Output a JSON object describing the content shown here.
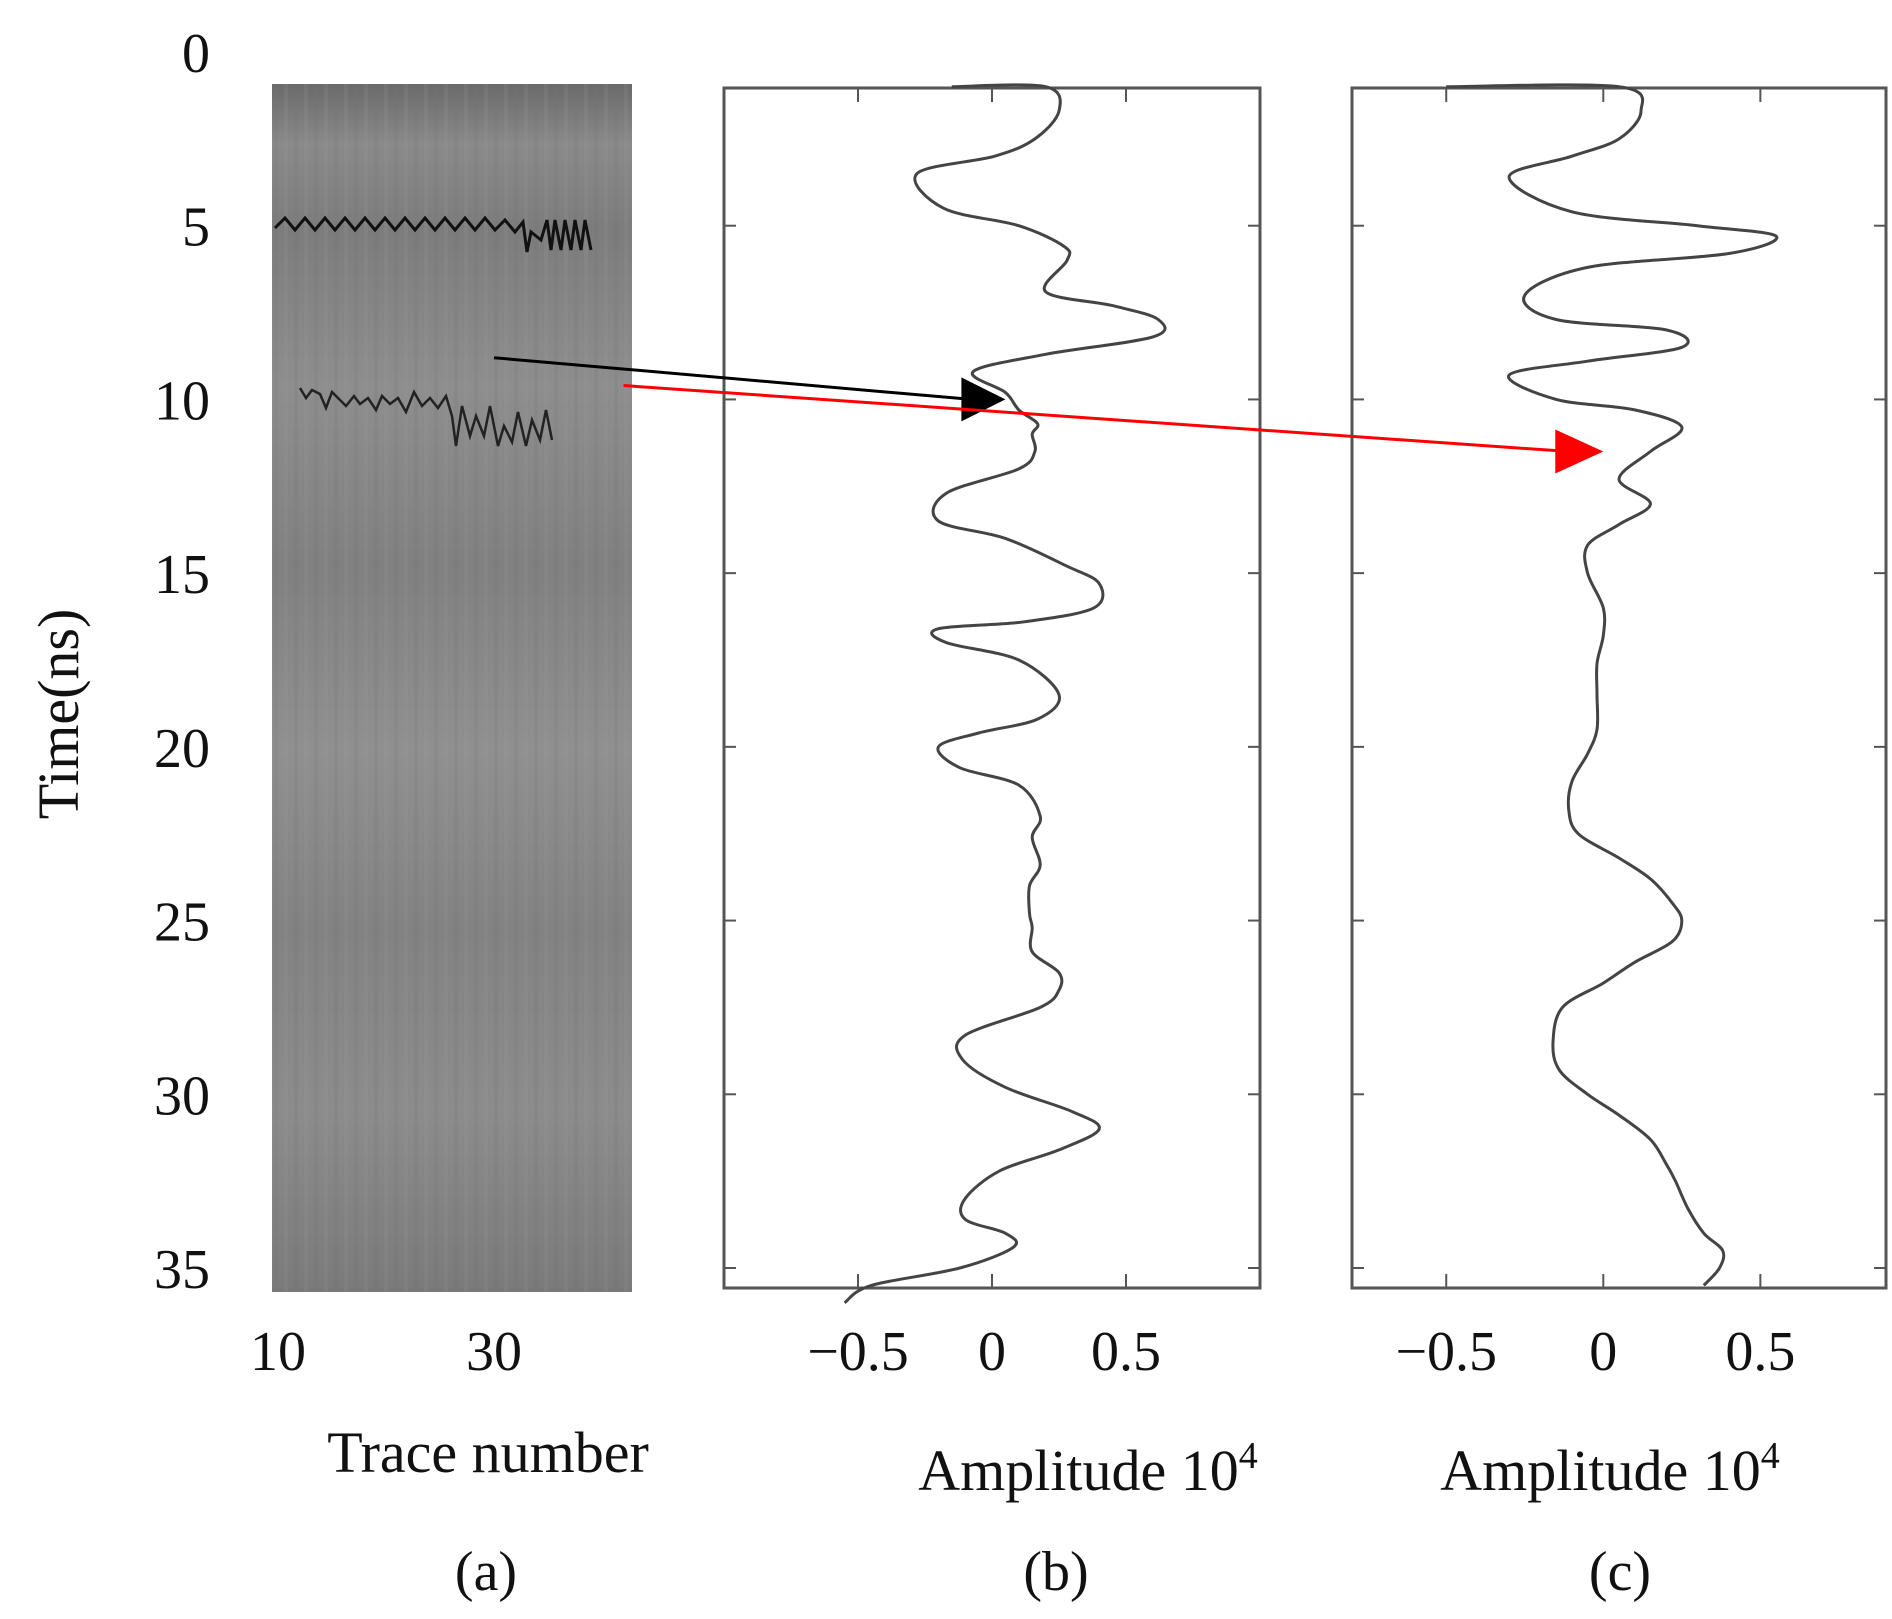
{
  "chart_data": [
    {
      "panel_label": "(a)",
      "type": "heatmap",
      "xlabel": "Trace number",
      "ylabel": "Time(ns)",
      "x_ticks": [
        "10",
        "30"
      ],
      "y_ticks": [
        "0",
        "5",
        "10",
        "15",
        "20",
        "25",
        "30",
        "35"
      ],
      "xlim": [
        10,
        43
      ],
      "ylim": [
        36,
        0
      ],
      "colormap": "gray",
      "annotations": [
        {
          "kind": "arrow",
          "color": "#000000",
          "from": {
            "trace": 30,
            "time": 8.8
          },
          "to_panel": "(b)",
          "to": {
            "amplitude": 0.05,
            "time": 10.0
          }
        },
        {
          "kind": "arrow",
          "color": "#ff0000",
          "from": {
            "trace": 42,
            "time": 9.6
          },
          "to_panel": "(c)",
          "to": {
            "amplitude": 0.0,
            "time": 11.5
          }
        }
      ]
    },
    {
      "panel_label": "(b)",
      "type": "line",
      "xlabel": "Amplitude 10",
      "xlabel_sup": "4",
      "x_ticks": [
        "−0.5",
        "0",
        "0.5"
      ],
      "xlim": [
        -1.0,
        1.0
      ],
      "ylim": [
        36,
        0
      ],
      "line_color": "#444444",
      "series": [
        {
          "values": [
            [
              -0.15,
              1.0
            ],
            [
              0.2,
              1.0
            ],
            [
              0.25,
              1.7
            ],
            [
              0.16,
              2.5
            ],
            [
              0.01,
              3.0
            ],
            [
              -0.28,
              3.5
            ],
            [
              -0.18,
              4.5
            ],
            [
              0.1,
              5.0
            ],
            [
              0.27,
              5.6
            ],
            [
              0.28,
              6.0
            ],
            [
              0.2,
              6.9
            ],
            [
              0.45,
              7.3
            ],
            [
              0.62,
              7.7
            ],
            [
              0.6,
              8.2
            ],
            [
              0.2,
              8.7
            ],
            [
              -0.07,
              9.2
            ],
            [
              0.05,
              9.8
            ],
            [
              0.1,
              10.3
            ],
            [
              0.17,
              10.7
            ],
            [
              0.15,
              11.0
            ],
            [
              0.16,
              11.5
            ],
            [
              0.1,
              12.0
            ],
            [
              -0.17,
              12.7
            ],
            [
              -0.2,
              13.5
            ],
            [
              0.05,
              14.0
            ],
            [
              0.28,
              14.8
            ],
            [
              0.4,
              15.3
            ],
            [
              0.38,
              16.0
            ],
            [
              0.12,
              16.4
            ],
            [
              -0.2,
              16.6
            ],
            [
              -0.17,
              17.0
            ],
            [
              0.1,
              17.5
            ],
            [
              0.25,
              18.5
            ],
            [
              0.17,
              19.2
            ],
            [
              -0.05,
              19.6
            ],
            [
              -0.2,
              20.0
            ],
            [
              -0.12,
              20.6
            ],
            [
              0.1,
              21.1
            ],
            [
              0.18,
              22.0
            ],
            [
              0.15,
              22.6
            ],
            [
              0.18,
              23.4
            ],
            [
              0.14,
              24.0
            ],
            [
              0.14,
              24.8
            ],
            [
              0.15,
              25.2
            ],
            [
              0.15,
              25.9
            ],
            [
              0.25,
              26.5
            ],
            [
              0.25,
              27.0
            ],
            [
              0.18,
              27.5
            ],
            [
              -0.1,
              28.3
            ],
            [
              -0.11,
              29.0
            ],
            [
              0.05,
              29.8
            ],
            [
              0.3,
              30.5
            ],
            [
              0.4,
              31.0
            ],
            [
              0.25,
              31.6
            ],
            [
              0.03,
              32.2
            ],
            [
              -0.1,
              33.0
            ],
            [
              -0.1,
              33.6
            ],
            [
              0.05,
              34.0
            ],
            [
              0.08,
              34.4
            ],
            [
              -0.12,
              35.0
            ],
            [
              -0.45,
              35.5
            ],
            [
              -0.55,
              36.0
            ]
          ]
        }
      ]
    },
    {
      "panel_label": "(c)",
      "type": "line",
      "xlabel": "Amplitude 10",
      "xlabel_sup": "4",
      "x_ticks": [
        "−0.5",
        "0",
        "0.5"
      ],
      "xlim": [
        -0.8,
        0.9
      ],
      "ylim": [
        36,
        0
      ],
      "line_color": "#444444",
      "series": [
        {
          "values": [
            [
              -0.5,
              1.0
            ],
            [
              0.05,
              1.0
            ],
            [
              0.12,
              1.7
            ],
            [
              0.05,
              2.5
            ],
            [
              -0.1,
              3.0
            ],
            [
              -0.3,
              3.6
            ],
            [
              -0.1,
              4.6
            ],
            [
              0.3,
              5.0
            ],
            [
              0.55,
              5.3
            ],
            [
              0.4,
              5.8
            ],
            [
              -0.05,
              6.2
            ],
            [
              -0.25,
              7.0
            ],
            [
              -0.15,
              7.7
            ],
            [
              0.2,
              8.0
            ],
            [
              0.25,
              8.5
            ],
            [
              -0.05,
              8.9
            ],
            [
              -0.3,
              9.3
            ],
            [
              -0.15,
              10.0
            ],
            [
              0.1,
              10.3
            ],
            [
              0.25,
              10.8
            ],
            [
              0.15,
              11.5
            ],
            [
              0.05,
              12.3
            ],
            [
              0.15,
              13.0
            ],
            [
              0.05,
              13.6
            ],
            [
              -0.05,
              14.2
            ],
            [
              -0.05,
              15.0
            ],
            [
              0.0,
              16.0
            ],
            [
              0.0,
              16.8
            ],
            [
              -0.02,
              17.6
            ],
            [
              -0.02,
              18.5
            ],
            [
              -0.02,
              19.5
            ],
            [
              -0.05,
              20.2
            ],
            [
              -0.1,
              21.0
            ],
            [
              -0.11,
              21.8
            ],
            [
              -0.08,
              22.5
            ],
            [
              0.05,
              23.2
            ],
            [
              0.15,
              23.8
            ],
            [
              0.22,
              24.5
            ],
            [
              0.25,
              25.0
            ],
            [
              0.22,
              25.6
            ],
            [
              0.1,
              26.2
            ],
            [
              0.0,
              26.8
            ],
            [
              -0.13,
              27.5
            ],
            [
              -0.16,
              28.5
            ],
            [
              -0.14,
              29.3
            ],
            [
              -0.05,
              30.0
            ],
            [
              0.05,
              30.6
            ],
            [
              0.15,
              31.3
            ],
            [
              0.2,
              32.0
            ],
            [
              0.23,
              32.5
            ],
            [
              0.27,
              33.3
            ],
            [
              0.32,
              34.0
            ],
            [
              0.38,
              34.5
            ],
            [
              0.37,
              35.0
            ],
            [
              0.32,
              35.5
            ]
          ]
        }
      ]
    }
  ]
}
